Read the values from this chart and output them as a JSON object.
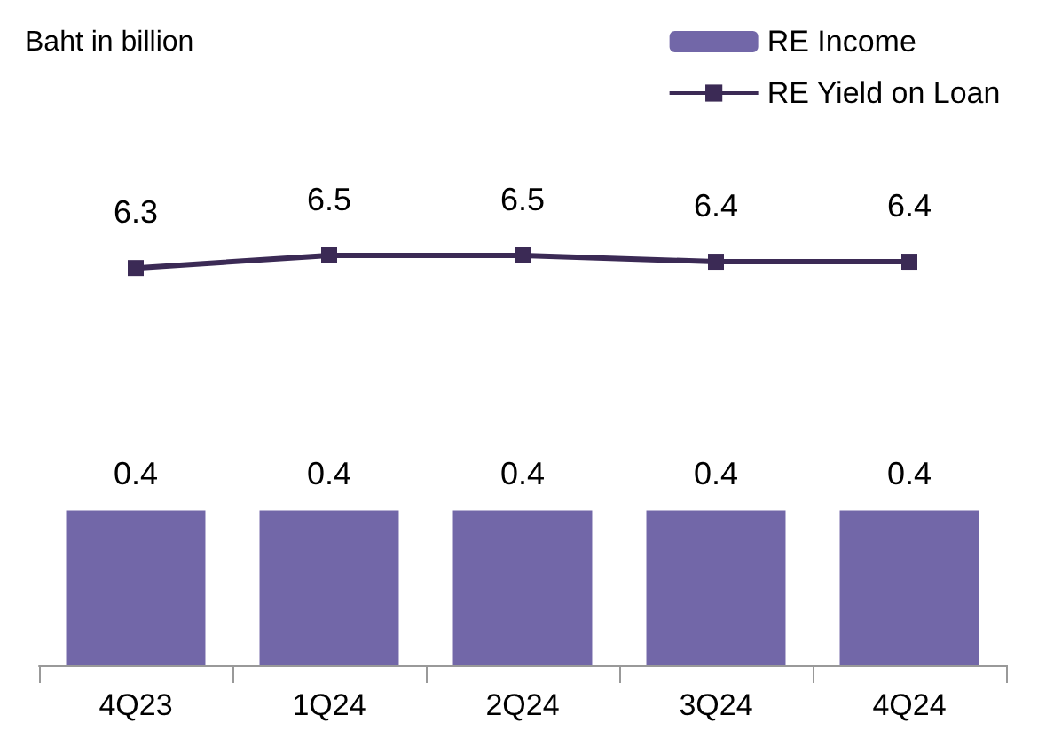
{
  "chart_data": {
    "type": "bar",
    "ylabel": "Baht in billion",
    "categories": [
      "4Q23",
      "1Q24",
      "2Q24",
      "3Q24",
      "4Q24"
    ],
    "series": [
      {
        "name": "RE Income",
        "color": "#7267a8",
        "values": [
          0.4,
          0.4,
          0.4,
          0.4,
          0.4
        ]
      },
      {
        "name": "RE Yield on Loan",
        "type": "line",
        "axis": "y2",
        "color": "#3b2a55",
        "values": [
          6.3,
          6.5,
          6.5,
          6.4,
          6.4
        ]
      }
    ],
    "ylim": [
      0,
      1.5
    ],
    "y2lim": [
      0,
      9.2
    ],
    "tick_labels": "x",
    "data_labels": true,
    "legend": "top right",
    "marker": "square",
    "line_style": "solid"
  }
}
